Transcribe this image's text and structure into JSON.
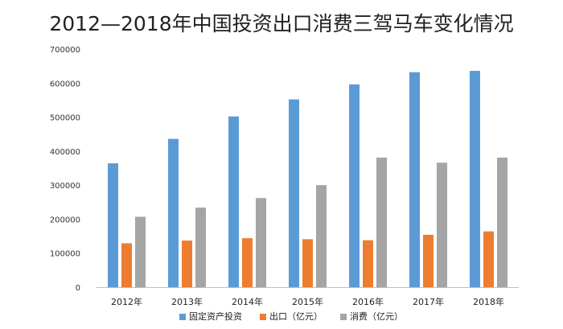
{
  "chart_data": {
    "type": "bar",
    "title": "2012—2018年中国投资出口消费三驾马车变化情况",
    "categories": [
      "2012年",
      "2013年",
      "2014年",
      "2015年",
      "2016年",
      "2017年",
      "2018年"
    ],
    "series": [
      {
        "name": "固定资产投资",
        "color": "#5b9bd5",
        "values": [
          364000,
          436000,
          502000,
          552000,
          596000,
          632000,
          636000
        ]
      },
      {
        "name": "出口（亿元）",
        "color": "#ed7d31",
        "values": [
          129000,
          137000,
          144000,
          141000,
          138000,
          154000,
          164000
        ]
      },
      {
        "name": "消费（亿元）",
        "color": "#a5a5a5",
        "values": [
          207000,
          234000,
          262000,
          300000,
          381000,
          366000,
          381000
        ]
      }
    ],
    "yticks": [
      "0",
      "100000",
      "200000",
      "300000",
      "400000",
      "500000",
      "600000",
      "700000"
    ],
    "ylim": [
      0,
      700000
    ],
    "xlabel": "",
    "ylabel": "",
    "legend_position": "bottom",
    "grid": false
  }
}
